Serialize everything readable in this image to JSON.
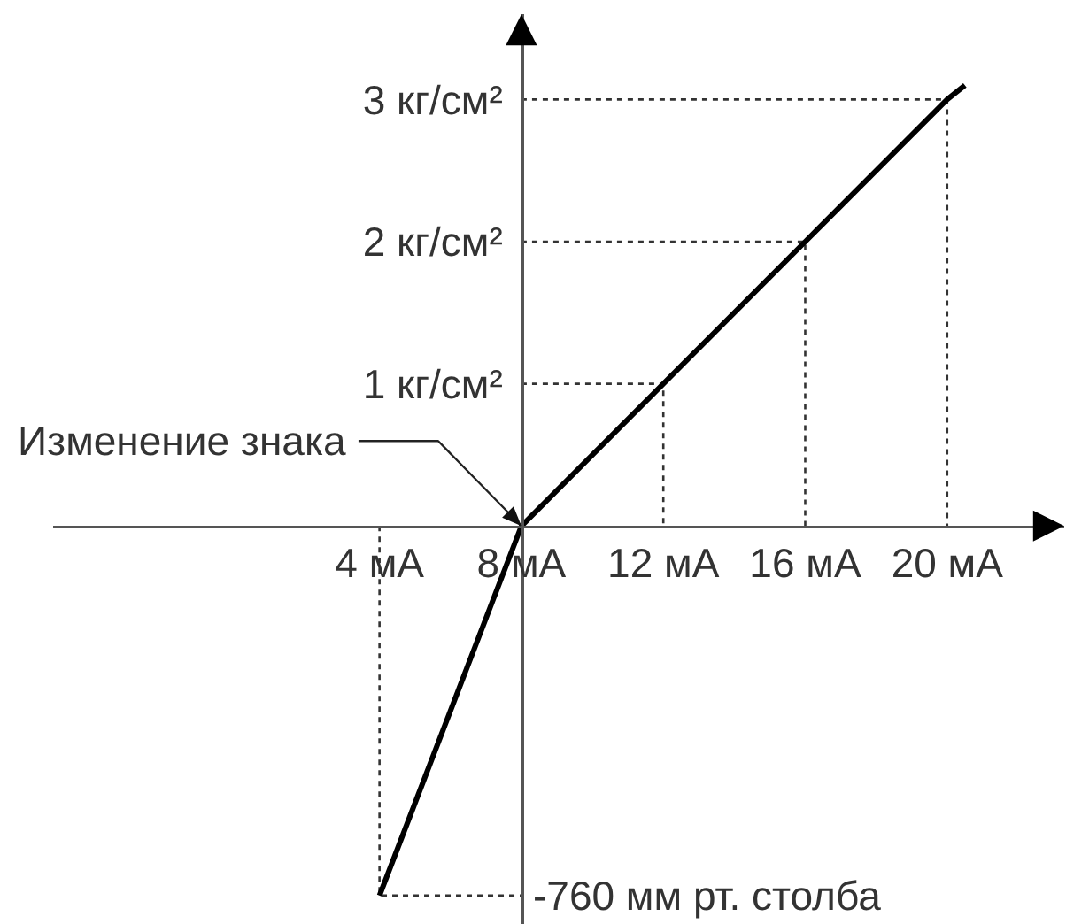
{
  "chart_data": {
    "type": "line",
    "x": [
      4,
      8,
      12,
      16,
      20,
      20.5
    ],
    "series": [
      {
        "color": "#000000",
        "values": [
          -2.6,
          0,
          1,
          2,
          3,
          3.1
        ]
      },
      {
        "color": "#333333",
        "line_style": "dotted",
        "x": [
          4,
          4,
          8
        ],
        "values": [
          0,
          -2.6,
          -2.6
        ]
      },
      {
        "color": "#333333",
        "line_style": "dotted",
        "x": [
          8,
          12,
          12
        ],
        "values": [
          1,
          1,
          0
        ]
      },
      {
        "color": "#333333",
        "line_style": "dotted",
        "x": [
          8,
          16,
          16
        ],
        "values": [
          2,
          2,
          0
        ]
      },
      {
        "color": "#333333",
        "line_style": "dotted",
        "x": [
          8,
          20,
          20
        ],
        "values": [
          3,
          3,
          0
        ]
      }
    ],
    "xlim": [
      -5.2,
      23.3
    ],
    "ylim": [
      -2.8,
      3.6
    ],
    "xticks": [
      {
        "value": 4,
        "label": "4 мА"
      },
      {
        "value": 8,
        "label": "8 мА"
      },
      {
        "value": 12,
        "label": "12 мА"
      },
      {
        "value": 16,
        "label": "16 мА"
      },
      {
        "value": 20,
        "label": "20 мА"
      }
    ],
    "yticks": [
      {
        "value": 1,
        "label": "1 кг/см²"
      },
      {
        "value": 2,
        "label": "2 кг/см²"
      },
      {
        "value": 3,
        "label": "3 кг/см²"
      }
    ],
    "annotations": [
      {
        "text": "Изменение знака",
        "x": 8,
        "y": 0
      },
      "-760 мм рт. столба"
    ]
  }
}
